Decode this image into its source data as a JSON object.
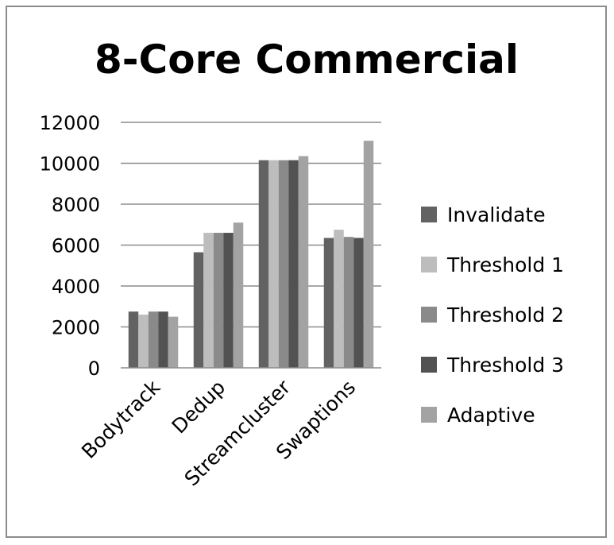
{
  "chart_data": {
    "type": "bar",
    "title": "8-Core Commercial",
    "xlabel": "",
    "ylabel": "",
    "ylim": [
      0,
      12000
    ],
    "yticks": [
      0,
      2000,
      4000,
      6000,
      8000,
      10000,
      12000
    ],
    "grid": true,
    "legend_position": "right",
    "categories": [
      "Bodytrack",
      "Dedup",
      "Streamcluster",
      "Swaptions"
    ],
    "series": [
      {
        "name": "Invalidate",
        "color": "#626262",
        "values": [
          2750,
          5650,
          10150,
          6350
        ]
      },
      {
        "name": "Threshold 1",
        "color": "#bdbdbd",
        "values": [
          2600,
          6600,
          10150,
          6750
        ]
      },
      {
        "name": "Threshold 2",
        "color": "#8a8a8a",
        "values": [
          2750,
          6600,
          10150,
          6400
        ]
      },
      {
        "name": "Threshold 3",
        "color": "#525252",
        "values": [
          2750,
          6600,
          10150,
          6350
        ]
      },
      {
        "name": "Adaptive",
        "color": "#a3a3a3",
        "values": [
          2500,
          7100,
          10350,
          11100
        ]
      }
    ]
  }
}
